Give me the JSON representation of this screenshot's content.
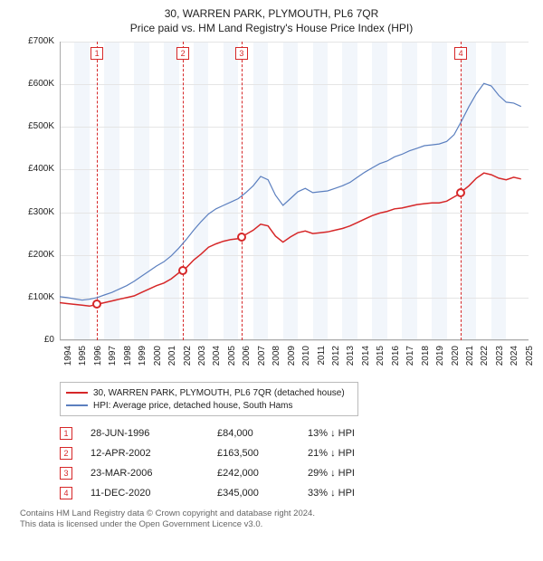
{
  "title": "30, WARREN PARK, PLYMOUTH, PL6 7QR",
  "subtitle": "Price paid vs. HM Land Registry's House Price Index (HPI)",
  "chart": {
    "type": "line",
    "background_color": "#ffffff",
    "alt_band_color": "#f2f6fb",
    "grid_color": "#e5e5e5",
    "axis_color": "#aaaaaa",
    "x_years": [
      1994,
      1995,
      1996,
      1997,
      1998,
      1999,
      2000,
      2001,
      2002,
      2003,
      2004,
      2005,
      2006,
      2007,
      2008,
      2009,
      2010,
      2011,
      2012,
      2013,
      2014,
      2015,
      2016,
      2017,
      2018,
      2019,
      2020,
      2021,
      2022,
      2023,
      2024,
      2025
    ],
    "xlim": [
      1994,
      2025.5
    ],
    "y_ticks": [
      0,
      100000,
      200000,
      300000,
      400000,
      500000,
      600000,
      700000
    ],
    "y_tick_labels": [
      "£0",
      "£100K",
      "£200K",
      "£300K",
      "£400K",
      "£500K",
      "£600K",
      "£700K"
    ],
    "ylim": [
      0,
      700000
    ],
    "label_fontsize": 10,
    "series": [
      {
        "name": "property",
        "label": "30, WARREN PARK, PLYMOUTH, PL6 7QR (detached house)",
        "color": "#d62728",
        "line_width": 1.5,
        "data": [
          [
            1994.0,
            88000
          ],
          [
            1994.5,
            86000
          ],
          [
            1995.0,
            84000
          ],
          [
            1995.5,
            82000
          ],
          [
            1996.0,
            80000
          ],
          [
            1996.5,
            84000
          ],
          [
            1997.0,
            88000
          ],
          [
            1997.5,
            92000
          ],
          [
            1998.0,
            96000
          ],
          [
            1998.5,
            100000
          ],
          [
            1999.0,
            104000
          ],
          [
            1999.5,
            112000
          ],
          [
            2000.0,
            120000
          ],
          [
            2000.5,
            128000
          ],
          [
            2001.0,
            134000
          ],
          [
            2001.5,
            144000
          ],
          [
            2002.0,
            158000
          ],
          [
            2002.3,
            163500
          ],
          [
            2002.5,
            170000
          ],
          [
            2003.0,
            188000
          ],
          [
            2003.5,
            202000
          ],
          [
            2004.0,
            218000
          ],
          [
            2004.5,
            226000
          ],
          [
            2005.0,
            232000
          ],
          [
            2005.5,
            236000
          ],
          [
            2006.0,
            238000
          ],
          [
            2006.2,
            242000
          ],
          [
            2006.5,
            248000
          ],
          [
            2007.0,
            258000
          ],
          [
            2007.5,
            272000
          ],
          [
            2008.0,
            268000
          ],
          [
            2008.5,
            244000
          ],
          [
            2009.0,
            230000
          ],
          [
            2009.5,
            242000
          ],
          [
            2010.0,
            252000
          ],
          [
            2010.5,
            256000
          ],
          [
            2011.0,
            250000
          ],
          [
            2011.5,
            252000
          ],
          [
            2012.0,
            254000
          ],
          [
            2012.5,
            258000
          ],
          [
            2013.0,
            262000
          ],
          [
            2013.5,
            268000
          ],
          [
            2014.0,
            276000
          ],
          [
            2014.5,
            284000
          ],
          [
            2015.0,
            292000
          ],
          [
            2015.5,
            298000
          ],
          [
            2016.0,
            302000
          ],
          [
            2016.5,
            308000
          ],
          [
            2017.0,
            310000
          ],
          [
            2017.5,
            314000
          ],
          [
            2018.0,
            318000
          ],
          [
            2018.5,
            320000
          ],
          [
            2019.0,
            322000
          ],
          [
            2019.5,
            322000
          ],
          [
            2020.0,
            326000
          ],
          [
            2020.5,
            336000
          ],
          [
            2020.95,
            345000
          ],
          [
            2021.0,
            348000
          ],
          [
            2021.5,
            362000
          ],
          [
            2022.0,
            380000
          ],
          [
            2022.5,
            392000
          ],
          [
            2023.0,
            388000
          ],
          [
            2023.5,
            380000
          ],
          [
            2024.0,
            376000
          ],
          [
            2024.5,
            382000
          ],
          [
            2025.0,
            378000
          ]
        ]
      },
      {
        "name": "hpi",
        "label": "HPI: Average price, detached house, South Hams",
        "color": "#5b7fbf",
        "line_width": 1.2,
        "data": [
          [
            1994.0,
            102000
          ],
          [
            1994.5,
            100000
          ],
          [
            1995.0,
            97000
          ],
          [
            1995.5,
            94000
          ],
          [
            1996.0,
            96000
          ],
          [
            1996.5,
            100000
          ],
          [
            1997.0,
            106000
          ],
          [
            1997.5,
            112000
          ],
          [
            1998.0,
            120000
          ],
          [
            1998.5,
            128000
          ],
          [
            1999.0,
            138000
          ],
          [
            1999.5,
            150000
          ],
          [
            2000.0,
            162000
          ],
          [
            2000.5,
            174000
          ],
          [
            2001.0,
            184000
          ],
          [
            2001.5,
            198000
          ],
          [
            2002.0,
            216000
          ],
          [
            2002.5,
            236000
          ],
          [
            2003.0,
            258000
          ],
          [
            2003.5,
            278000
          ],
          [
            2004.0,
            296000
          ],
          [
            2004.5,
            308000
          ],
          [
            2005.0,
            316000
          ],
          [
            2005.5,
            324000
          ],
          [
            2006.0,
            332000
          ],
          [
            2006.5,
            346000
          ],
          [
            2007.0,
            362000
          ],
          [
            2007.5,
            384000
          ],
          [
            2008.0,
            376000
          ],
          [
            2008.5,
            340000
          ],
          [
            2009.0,
            316000
          ],
          [
            2009.5,
            332000
          ],
          [
            2010.0,
            348000
          ],
          [
            2010.5,
            356000
          ],
          [
            2011.0,
            346000
          ],
          [
            2011.5,
            348000
          ],
          [
            2012.0,
            350000
          ],
          [
            2012.5,
            356000
          ],
          [
            2013.0,
            362000
          ],
          [
            2013.5,
            370000
          ],
          [
            2014.0,
            382000
          ],
          [
            2014.5,
            394000
          ],
          [
            2015.0,
            404000
          ],
          [
            2015.5,
            414000
          ],
          [
            2016.0,
            420000
          ],
          [
            2016.5,
            430000
          ],
          [
            2017.0,
            436000
          ],
          [
            2017.5,
            444000
          ],
          [
            2018.0,
            450000
          ],
          [
            2018.5,
            456000
          ],
          [
            2019.0,
            458000
          ],
          [
            2019.5,
            460000
          ],
          [
            2020.0,
            466000
          ],
          [
            2020.5,
            482000
          ],
          [
            2021.0,
            514000
          ],
          [
            2021.5,
            548000
          ],
          [
            2022.0,
            578000
          ],
          [
            2022.5,
            602000
          ],
          [
            2023.0,
            596000
          ],
          [
            2023.5,
            574000
          ],
          [
            2024.0,
            558000
          ],
          [
            2024.5,
            556000
          ],
          [
            2025.0,
            548000
          ]
        ]
      }
    ],
    "sale_markers": [
      {
        "n": "1",
        "x": 1996.5,
        "y": 84000,
        "color": "#d62728"
      },
      {
        "n": "2",
        "x": 2002.28,
        "y": 163500,
        "color": "#d62728"
      },
      {
        "n": "3",
        "x": 2006.22,
        "y": 242000,
        "color": "#d62728"
      },
      {
        "n": "4",
        "x": 2020.95,
        "y": 345000,
        "color": "#d62728"
      }
    ]
  },
  "legend": {
    "items": [
      {
        "color": "#d62728",
        "label": "30, WARREN PARK, PLYMOUTH, PL6 7QR (detached house)"
      },
      {
        "color": "#5b7fbf",
        "label": "HPI: Average price, detached house, South Hams"
      }
    ]
  },
  "sales": [
    {
      "n": "1",
      "color": "#d62728",
      "date": "28-JUN-1996",
      "price": "£84,000",
      "diff": "13% ↓ HPI"
    },
    {
      "n": "2",
      "color": "#d62728",
      "date": "12-APR-2002",
      "price": "£163,500",
      "diff": "21% ↓ HPI"
    },
    {
      "n": "3",
      "color": "#d62728",
      "date": "23-MAR-2006",
      "price": "£242,000",
      "diff": "29% ↓ HPI"
    },
    {
      "n": "4",
      "color": "#d62728",
      "date": "11-DEC-2020",
      "price": "£345,000",
      "diff": "33% ↓ HPI"
    }
  ],
  "footnote_line1": "Contains HM Land Registry data © Crown copyright and database right 2024.",
  "footnote_line2": "This data is licensed under the Open Government Licence v3.0."
}
